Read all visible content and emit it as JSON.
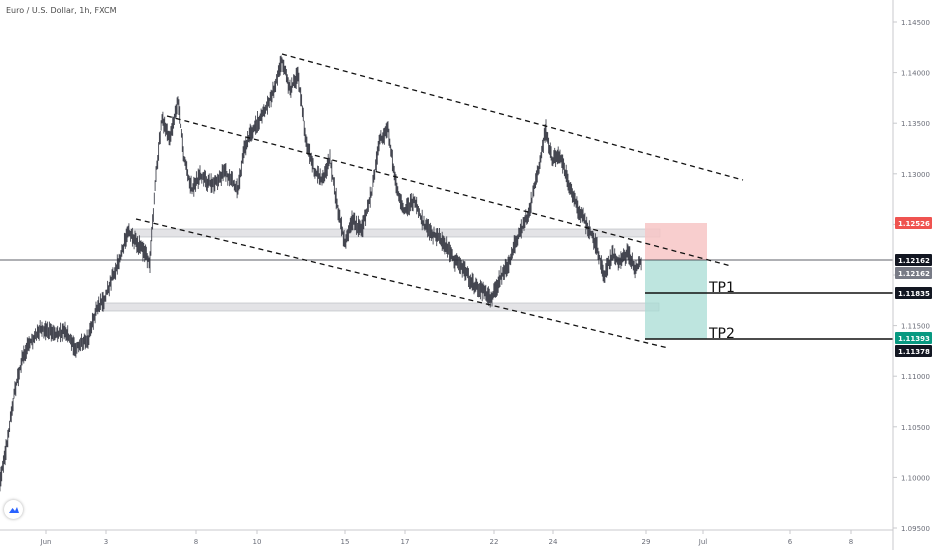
{
  "title": "Euro / U.S. Dollar, 1h, FXCM",
  "chart_data": {
    "type": "line",
    "series": [
      {
        "x": [
          "May 31 00:00",
          "Jun 3",
          "Jun 4",
          "Jun 5",
          "Jun 6",
          "Jun 7",
          "Jun 10",
          "Jun 11",
          "Jun 12",
          "Jun 13",
          "Jun 14",
          "Jun 17",
          "Jun 18",
          "Jun 19",
          "Jun 20",
          "Jun 21",
          "Jun 24",
          "Jun 25",
          "Jun 26",
          "Jun 27",
          "Jun 28"
        ],
        "y": [
          1.0975,
          1.1195,
          1.1245,
          1.1218,
          1.1305,
          1.1285,
          1.1348,
          1.1385,
          1.1325,
          1.1248,
          1.1312,
          1.1245,
          1.1262,
          1.1228,
          1.1202,
          1.1195,
          1.1338,
          1.1278,
          1.1225,
          1.1185,
          1.1205
        ]
      }
    ],
    "ylim": [
      1.0925,
      1.1475
    ],
    "yticks": [
      "1.14500",
      "1.14000",
      "1.13500",
      "1.13000",
      "1.12500",
      "1.12000",
      "1.11500",
      "1.11000",
      "1.10500",
      "1.10000",
      "1.09500"
    ],
    "xticks": [
      "Jun",
      "3",
      "8",
      "10",
      "15",
      "17",
      "22",
      "24",
      "29",
      "Jul",
      "6",
      "8"
    ],
    "price_labels": [
      {
        "value": "1.12526",
        "color": "#ef5350"
      },
      {
        "value": "1.12162",
        "color": "#131722"
      },
      {
        "value": "1.12162",
        "color": "#787b86"
      },
      {
        "value": "1.11835",
        "color": "#131722"
      },
      {
        "value": "1.11393",
        "color": "#089981"
      },
      {
        "value": "1.11378",
        "color": "#131722"
      }
    ],
    "annotations": [
      "TP1",
      "TP2"
    ],
    "grid": false
  }
}
